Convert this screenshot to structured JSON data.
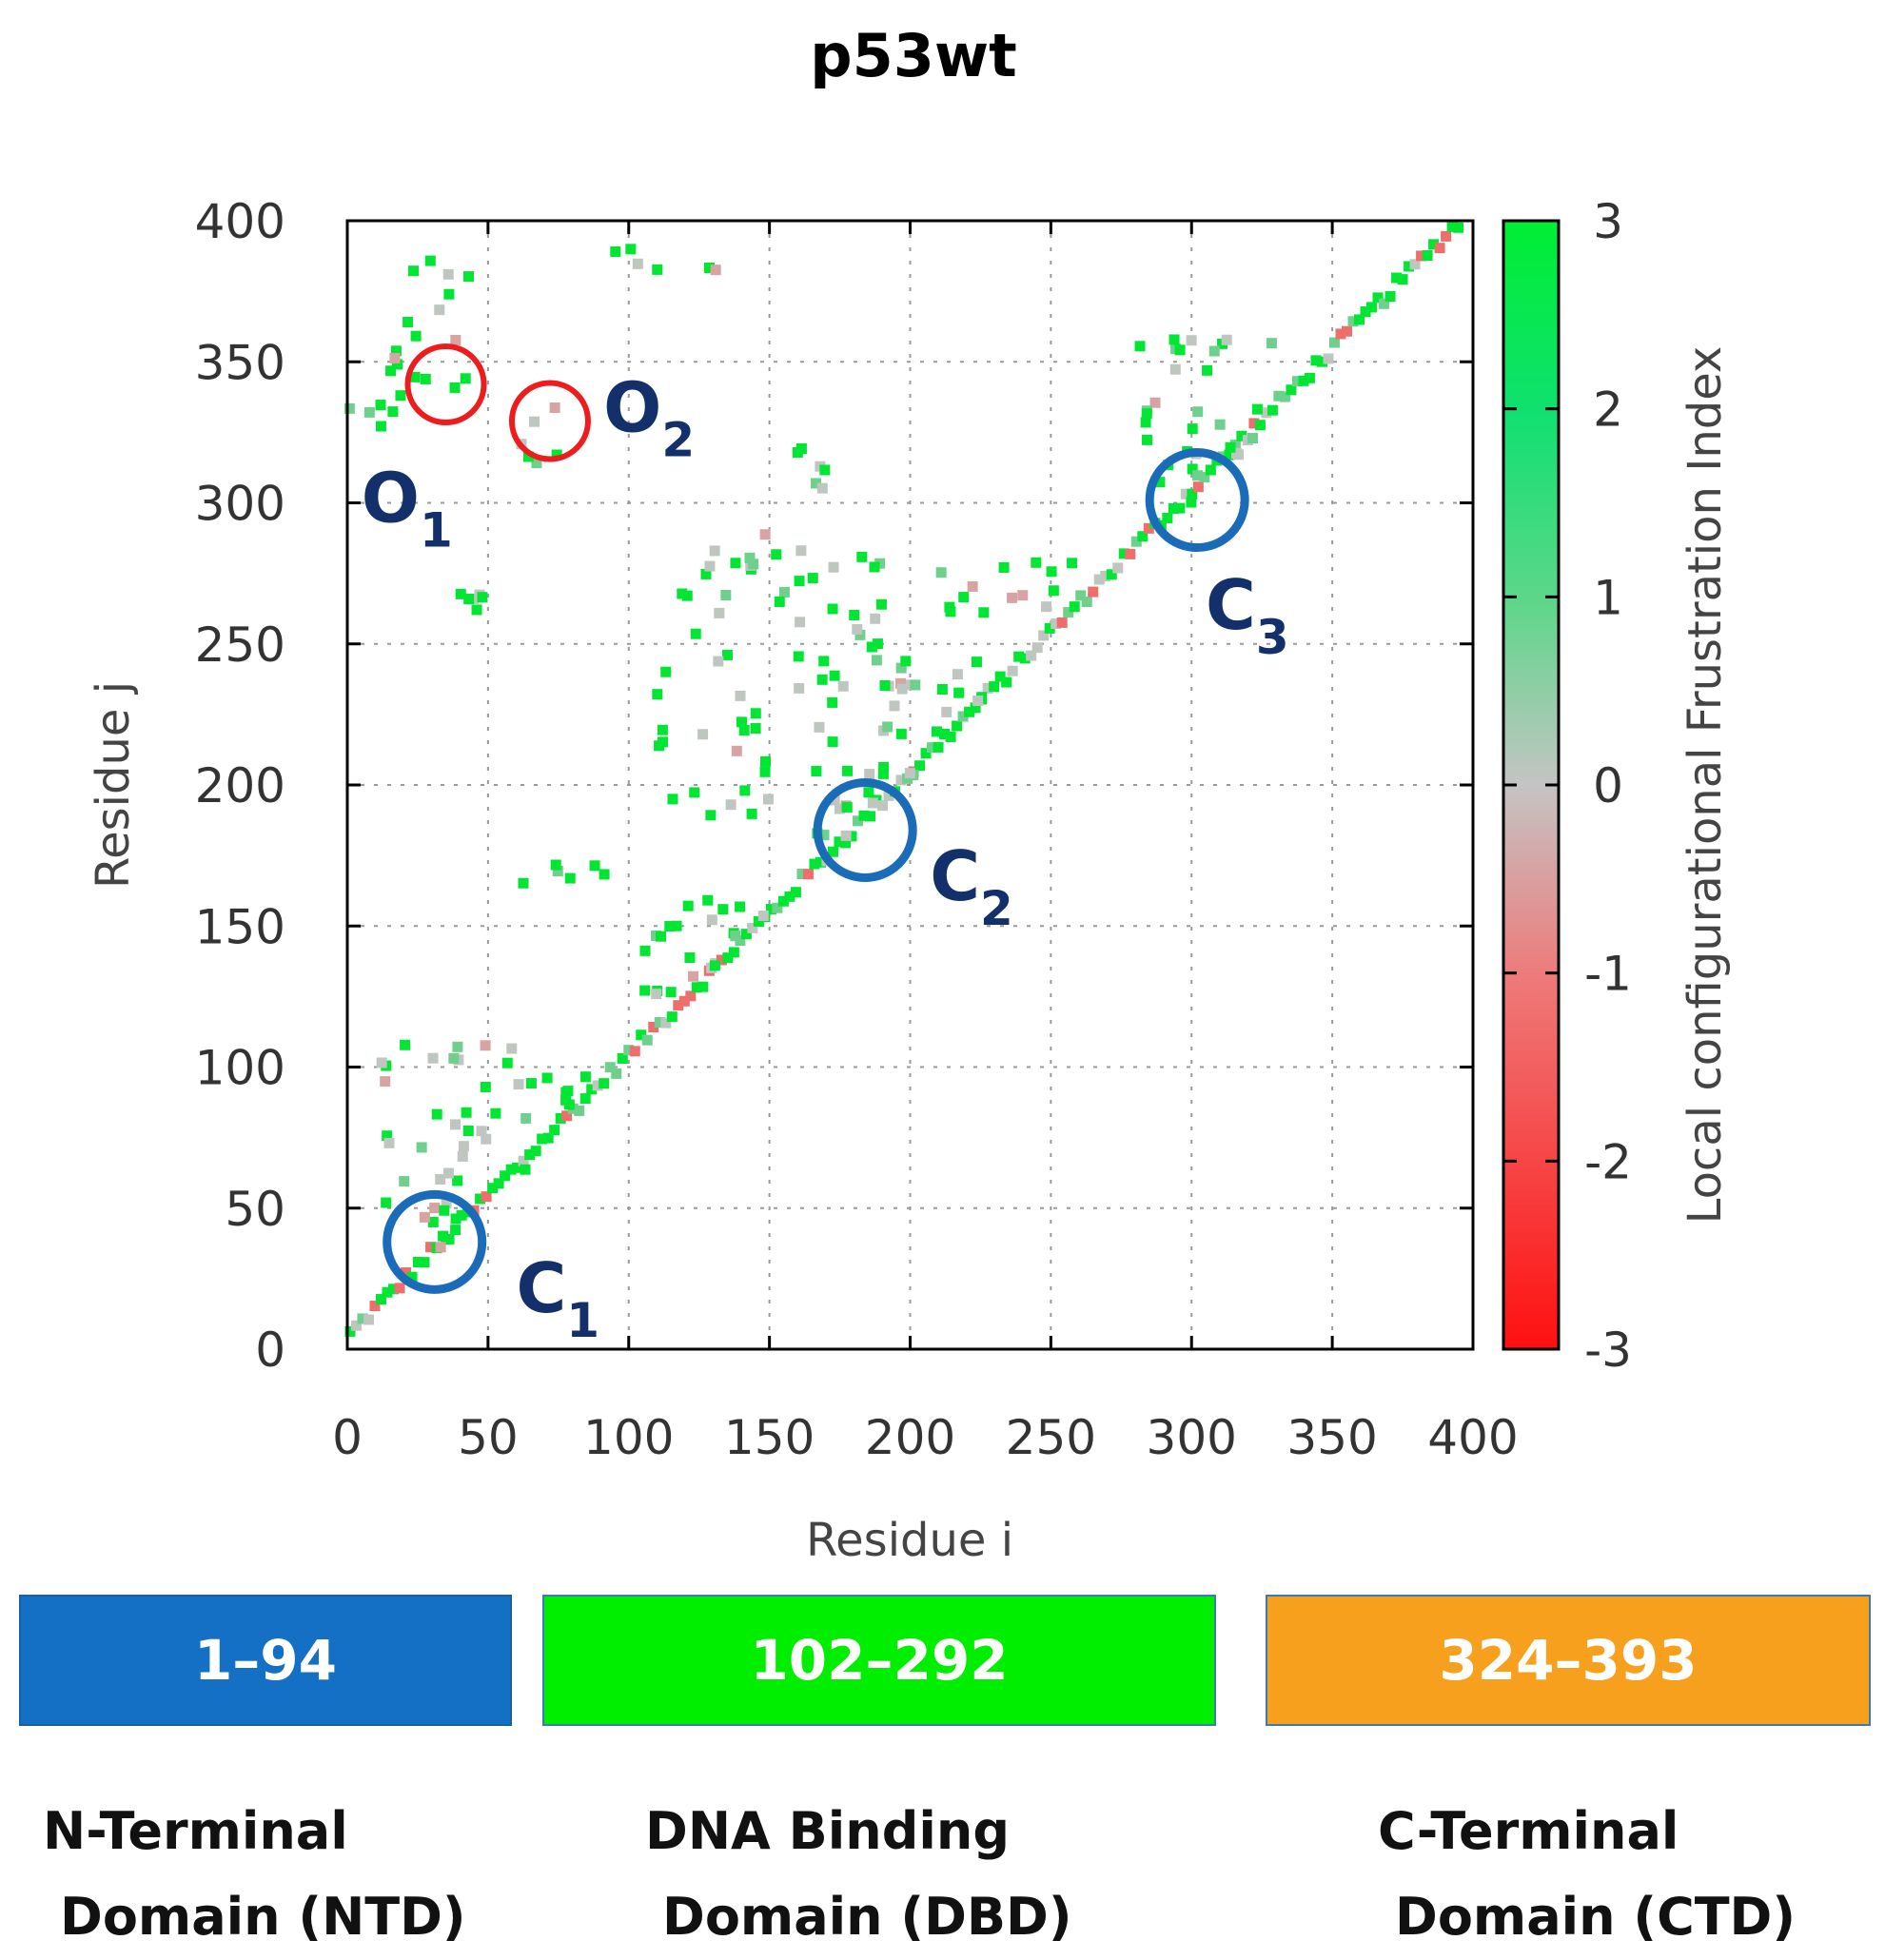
{
  "chart_data": {
    "type": "scatter",
    "title": "p53wt",
    "xlabel": "Residue i",
    "ylabel": "Residue j",
    "xlim": [
      0,
      400
    ],
    "ylim": [
      0,
      400
    ],
    "xticks": [
      "0",
      "50",
      "100",
      "150",
      "200",
      "250",
      "300",
      "350",
      "400"
    ],
    "yticks": [
      "0",
      "50",
      "100",
      "150",
      "200",
      "250",
      "300",
      "350",
      "400"
    ],
    "grid": true,
    "colorbar": {
      "label": "Local configurational Frustration Index",
      "range": [
        -3,
        3
      ],
      "ticks": [
        "-3",
        "-2",
        "-1",
        "0",
        "1",
        "2",
        "3"
      ],
      "low_color": "#ff0000",
      "mid_color": "#c4c4c4",
      "high_color": "#00ee33"
    },
    "annotations": [
      {
        "main": "O",
        "sub": "1",
        "x": 35,
        "y": 342,
        "color": "#ee1c1c",
        "label_x": 5,
        "label_y": 302
      },
      {
        "main": "O",
        "sub": "2",
        "x": 72,
        "y": 329,
        "color": "#ee1c1c",
        "label_x": 91,
        "label_y": 334
      },
      {
        "main": "C",
        "sub": "1",
        "x": 31,
        "y": 38,
        "color": "#1a6bb8",
        "label_x": 60,
        "label_y": 22
      },
      {
        "main": "C",
        "sub": "2",
        "x": 184,
        "y": 184,
        "color": "#1a6bb8",
        "label_x": 207,
        "label_y": 168
      },
      {
        "main": "C",
        "sub": "3",
        "x": 302,
        "y": 301,
        "color": "#1a6bb8",
        "label_x": 305,
        "label_y": 264
      }
    ],
    "contact_clusters": [
      {
        "x": [
          0,
          400
        ],
        "y": [
          0,
          400
        ],
        "kind": "diagonal"
      },
      {
        "x": [
          15,
          45
        ],
        "y": [
          340,
          390
        ]
      },
      {
        "x": [
          0,
          25
        ],
        "y": [
          325,
          340
        ]
      },
      {
        "x": [
          60,
          75
        ],
        "y": [
          300,
          335
        ]
      },
      {
        "x": [
          95,
          135
        ],
        "y": [
          380,
          392
        ]
      },
      {
        "x": [
          40,
          50
        ],
        "y": [
          260,
          268
        ]
      },
      {
        "x": [
          110,
          190
        ],
        "y": [
          180,
          290
        ]
      },
      {
        "x": [
          190,
          230
        ],
        "y": [
          200,
          260
        ]
      },
      {
        "x": [
          60,
          95
        ],
        "y": [
          165,
          172
        ]
      },
      {
        "x": [
          100,
          150
        ],
        "y": [
          120,
          160
        ]
      },
      {
        "x": [
          10,
          60
        ],
        "y": [
          30,
          110
        ]
      },
      {
        "x": [
          60,
          90
        ],
        "y": [
          60,
          100
        ]
      },
      {
        "x": [
          280,
          330
        ],
        "y": [
          300,
          360
        ]
      },
      {
        "x": [
          210,
          260
        ],
        "y": [
          260,
          285
        ]
      },
      {
        "x": [
          160,
          170
        ],
        "y": [
          305,
          330
        ]
      }
    ]
  },
  "domains": [
    {
      "range": "1–94",
      "line1": "N-Terminal",
      "line2": "Domain (NTD)",
      "color": "#1470c4",
      "border": "#1a5fa0"
    },
    {
      "range": "102–292",
      "line1": "DNA Binding",
      "line2": "Domain (DBD)",
      "color": "#00ee00",
      "border": "#3a7ab8"
    },
    {
      "range": "324–393",
      "line1": "C-Terminal",
      "line2": "Domain (CTD)",
      "color": "#f7a01e",
      "border": "#3a7ab8"
    }
  ]
}
